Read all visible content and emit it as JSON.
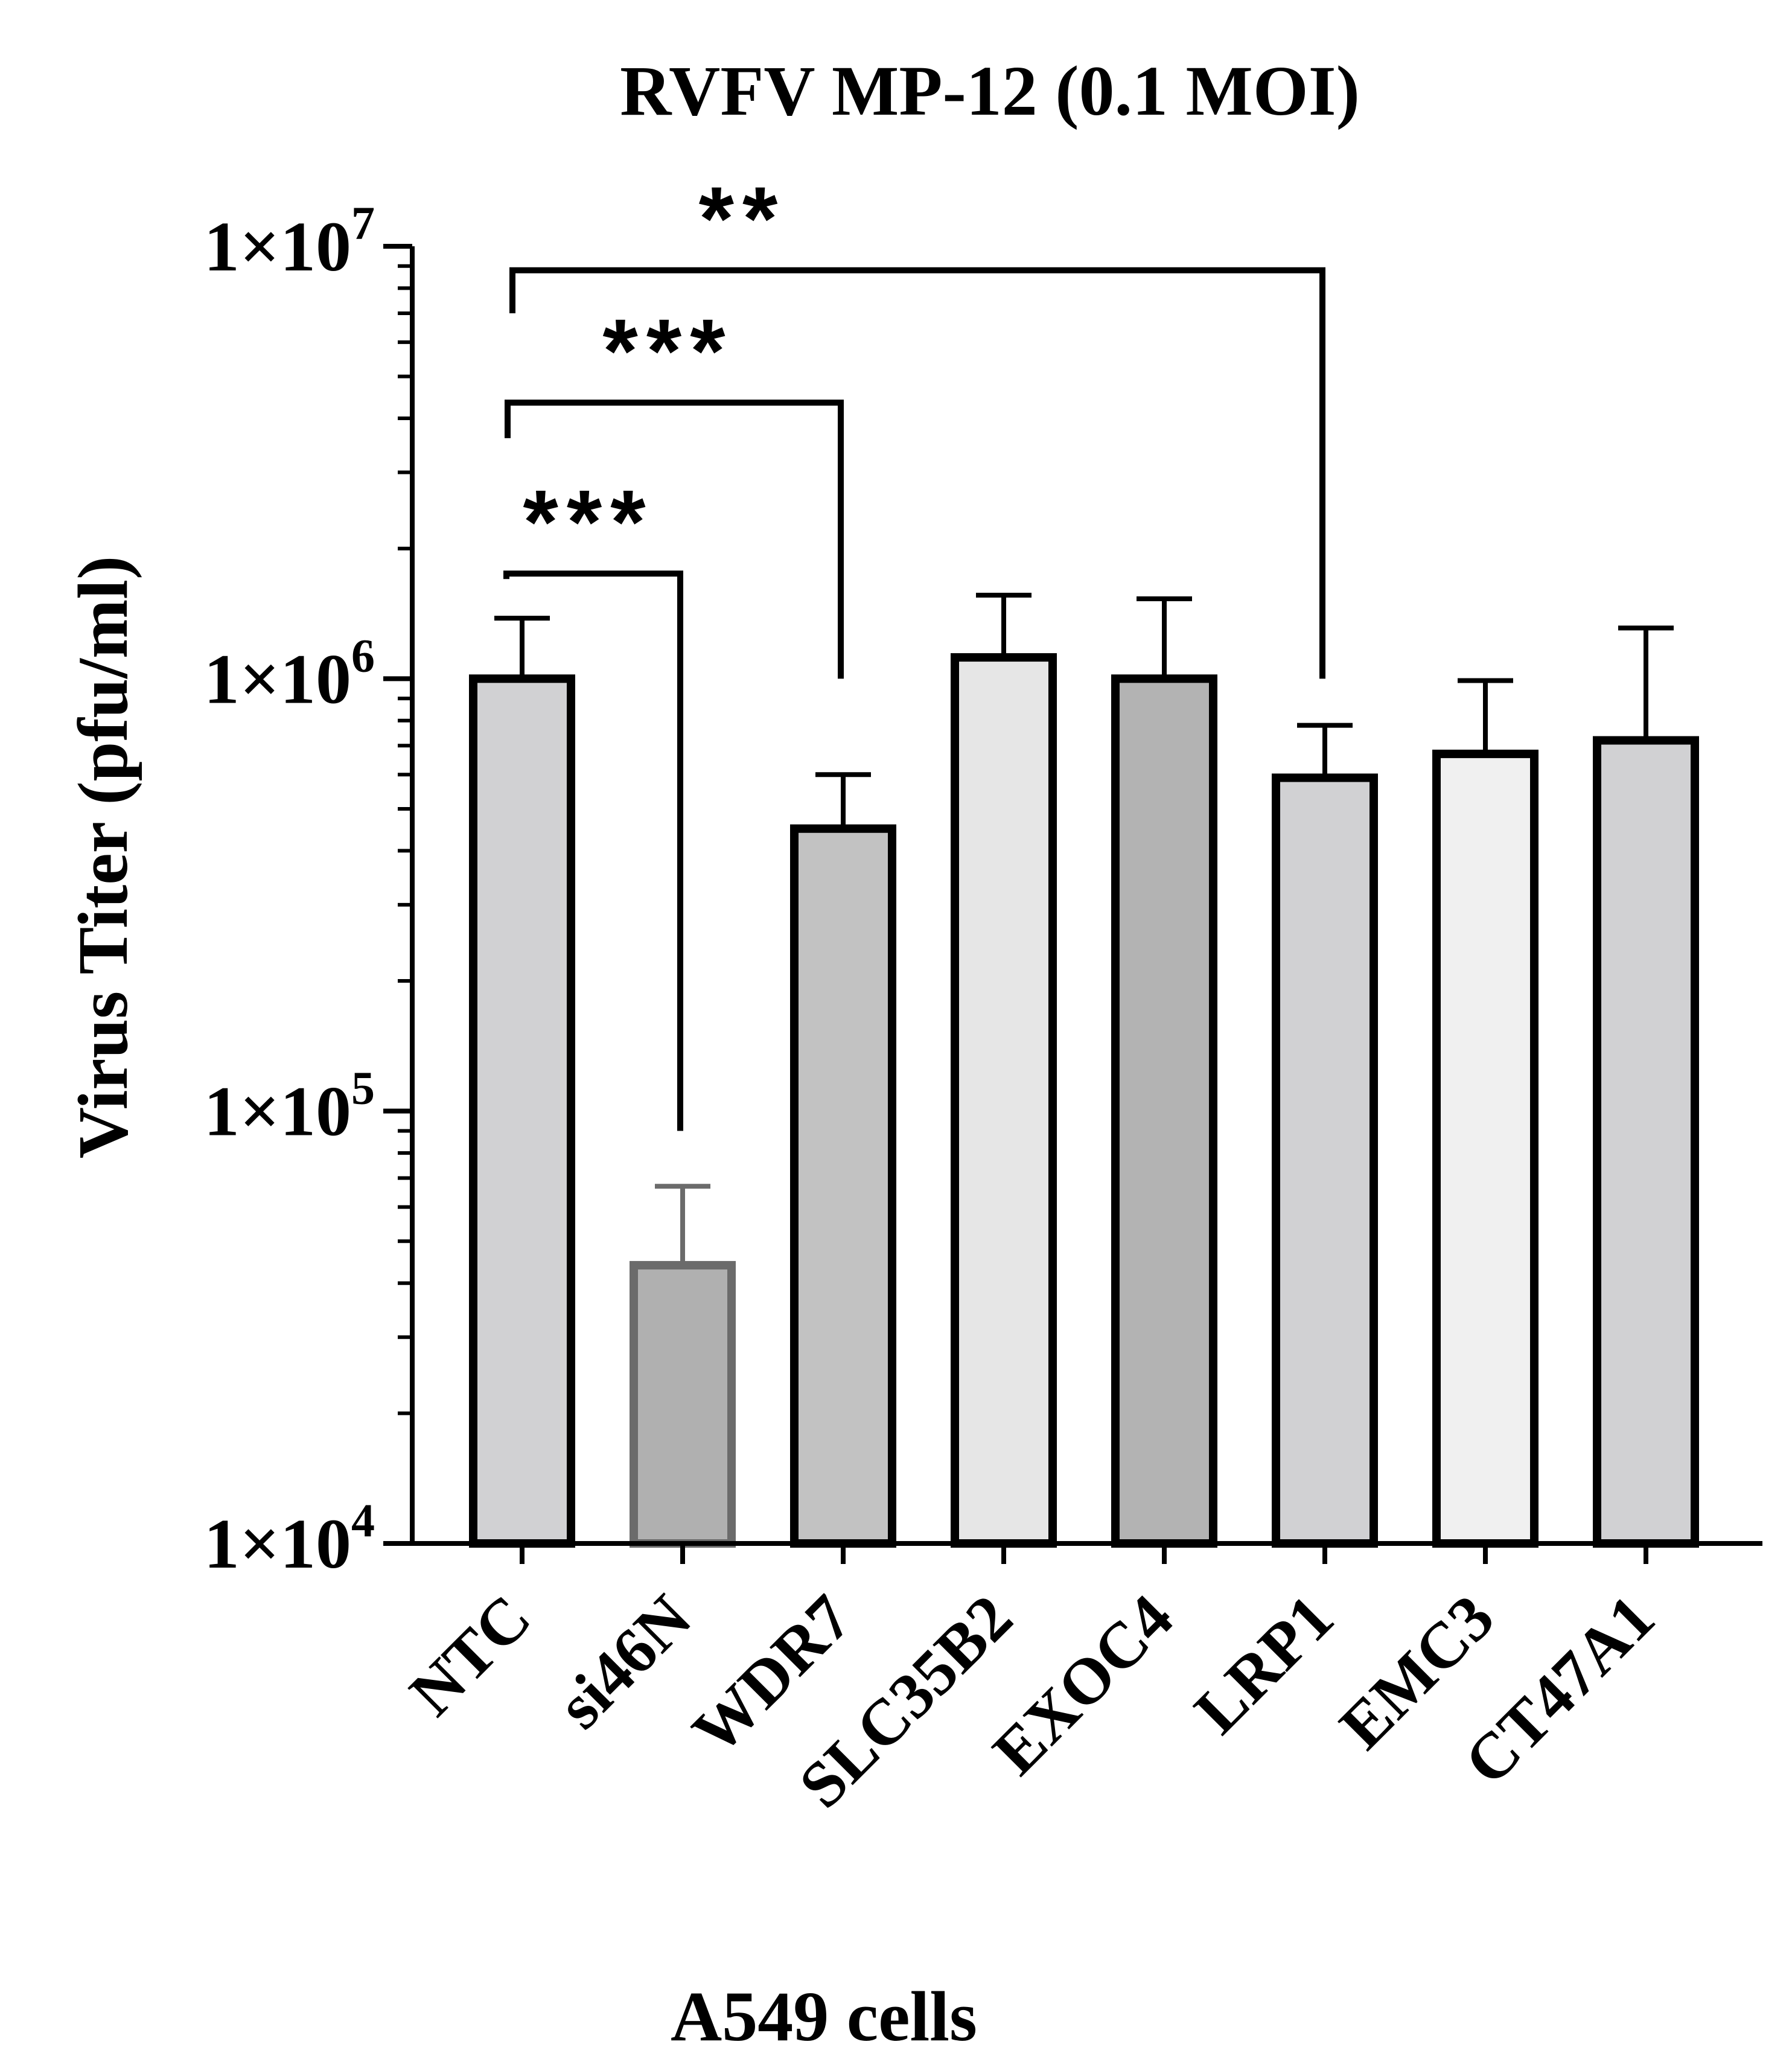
{
  "chart_data": {
    "type": "bar",
    "title": "RVFV MP-12 (0.1 MOI)",
    "xlabel": "A549 cells",
    "ylabel": "Virus Titer (pfu/ml)",
    "yscale": "log",
    "ylim": [
      10000,
      10000000
    ],
    "yticks": [
      {
        "value": 10000,
        "label": "1×10",
        "exp": "4"
      },
      {
        "value": 100000,
        "label": "1×10",
        "exp": "5"
      },
      {
        "value": 1000000,
        "label": "1×10",
        "exp": "6"
      },
      {
        "value": 10000000,
        "label": "1×10",
        "exp": "7"
      }
    ],
    "categories": [
      "NTC",
      "si46N",
      "WDR7",
      "SLC35B2",
      "EXOC4",
      "LRP1",
      "EMC3",
      "CT47A1"
    ],
    "values": [
      1000000,
      44000,
      450000,
      1120000,
      1000000,
      590000,
      670000,
      720000
    ],
    "errors_upper": [
      1380000,
      67000,
      600000,
      1560000,
      1530000,
      780000,
      990000,
      1310000
    ],
    "fill_colors": [
      "#d1d1d3",
      "#b0b0b0",
      "#c2c2c2",
      "#e6e6e6",
      "#b3b3b3",
      "#d1d1d3",
      "#f0f0f0",
      "#d1d1d3"
    ],
    "edge_colors": [
      "#000000",
      "#6b6b6b",
      "#000000",
      "#000000",
      "#000000",
      "#000000",
      "#000000",
      "#000000"
    ],
    "significance": [
      {
        "from": "NTC",
        "to": "si46N",
        "label": "***",
        "left_start": 1700000,
        "top": 1750000,
        "right_end": 90000
      },
      {
        "from": "NTC",
        "to": "WDR7",
        "label": "***",
        "left_start": 3600000,
        "top": 4350000,
        "right_end": 1000000
      },
      {
        "from": "NTC",
        "to": "LRP1",
        "label": "**",
        "left_start": 7000000,
        "top": 8800000,
        "right_end": 1000000
      }
    ]
  }
}
